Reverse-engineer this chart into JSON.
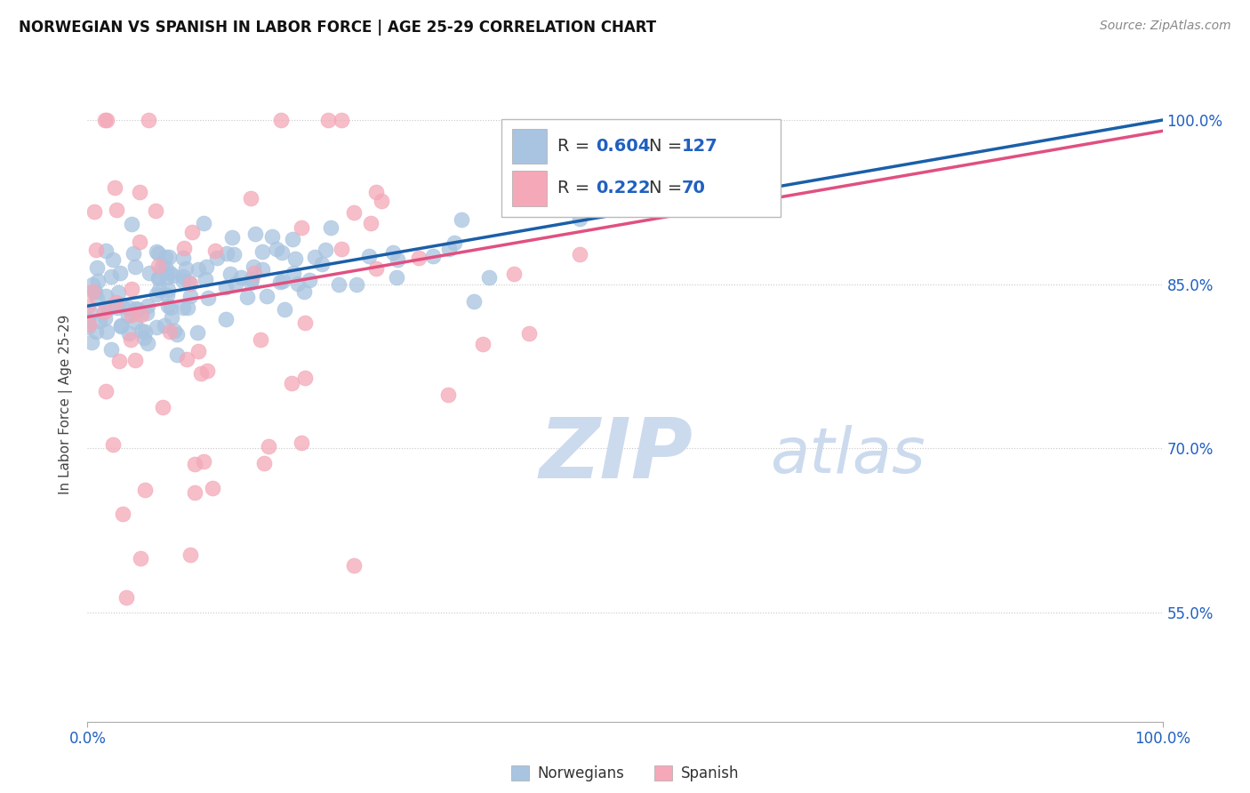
{
  "title": "NORWEGIAN VS SPANISH IN LABOR FORCE | AGE 25-29 CORRELATION CHART",
  "source": "Source: ZipAtlas.com",
  "ylabel": "In Labor Force | Age 25-29",
  "xlim": [
    0.0,
    1.0
  ],
  "ylim": [
    0.45,
    1.03
  ],
  "yticks": [
    0.55,
    0.7,
    0.85,
    1.0
  ],
  "ytick_labels": [
    "55.0%",
    "70.0%",
    "85.0%",
    "100.0%"
  ],
  "xtick_labels": [
    "0.0%",
    "100.0%"
  ],
  "xticks": [
    0.0,
    1.0
  ],
  "norwegian_color": "#a8c4e0",
  "spanish_color": "#f4a8b8",
  "trend_norwegian_color": "#1a5fa8",
  "trend_spanish_color": "#e05080",
  "R_norwegian": 0.604,
  "N_norwegian": 127,
  "R_spanish": 0.222,
  "N_spanish": 70,
  "nor_trend": [
    0.83,
    1.0
  ],
  "spa_trend": [
    0.82,
    0.99
  ],
  "background_color": "#ffffff",
  "grid_color": "#c8c8c8",
  "watermark_text": "ZIP",
  "watermark_text2": "atlas",
  "watermark_color": "#ccdaee"
}
